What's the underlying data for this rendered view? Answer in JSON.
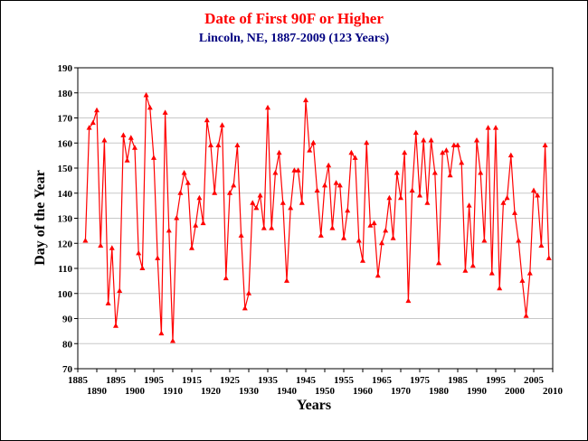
{
  "chart_data": {
    "type": "line",
    "title": "Date of First 90F or Higher",
    "subtitle": "Lincoln, NE, 1887-2009 (123 Years)",
    "xlabel": "Years",
    "ylabel": "Day of the Year",
    "xlim": [
      1885,
      2010
    ],
    "ylim": [
      70,
      190
    ],
    "y_ticks": [
      70,
      80,
      90,
      100,
      110,
      120,
      130,
      140,
      150,
      160,
      170,
      180,
      190
    ],
    "x_major_ticks": [
      1890,
      1900,
      1910,
      1920,
      1930,
      1940,
      1950,
      1960,
      1970,
      1980,
      1990,
      2000,
      2010
    ],
    "x_minor_ticks": [
      1885,
      1895,
      1905,
      1915,
      1925,
      1935,
      1945,
      1955,
      1965,
      1975,
      1985,
      1995,
      2005
    ],
    "grid": true,
    "legend": "none",
    "colors": {
      "title": "#ff0000",
      "subtitle": "#000080",
      "series": "#ff0000",
      "grid": "#c8c8c8"
    },
    "series": [
      {
        "x": [
          1887,
          1888,
          1889,
          1890,
          1891,
          1892,
          1893,
          1894,
          1895,
          1896,
          1897,
          1898,
          1899,
          1900,
          1901,
          1902,
          1903,
          1904,
          1905,
          1906,
          1907,
          1908,
          1909,
          1910,
          1911,
          1912,
          1913,
          1914,
          1915,
          1916,
          1917,
          1918,
          1919,
          1920,
          1921,
          1922,
          1923,
          1924,
          1925,
          1926,
          1927,
          1928,
          1929,
          1930,
          1931,
          1932,
          1933,
          1934,
          1935,
          1936,
          1937,
          1938,
          1939,
          1940,
          1941,
          1942,
          1943,
          1944,
          1945,
          1946,
          1947,
          1948,
          1949,
          1950,
          1951,
          1952,
          1953,
          1954,
          1955,
          1956,
          1957,
          1958,
          1959,
          1960,
          1961,
          1962,
          1963,
          1964,
          1965,
          1966,
          1967,
          1968,
          1969,
          1970,
          1971,
          1972,
          1973,
          1974,
          1975,
          1976,
          1977,
          1978,
          1979,
          1980,
          1981,
          1982,
          1983,
          1984,
          1985,
          1986,
          1987,
          1988,
          1989,
          1990,
          1991,
          1992,
          1993,
          1994,
          1995,
          1996,
          1997,
          1998,
          1999,
          2000,
          2001,
          2002,
          2003,
          2004,
          2005,
          2006,
          2007,
          2008,
          2009
        ],
        "values": [
          121,
          166,
          168,
          173,
          119,
          161,
          96,
          118,
          87,
          101,
          163,
          153,
          162,
          158,
          116,
          110,
          179,
          174,
          154,
          114,
          84,
          172,
          125,
          81,
          130,
          140,
          148,
          144,
          118,
          127,
          138,
          128,
          169,
          159,
          140,
          159,
          167,
          106,
          140,
          143,
          159,
          123,
          94,
          100,
          136,
          134,
          139,
          126,
          174,
          126,
          148,
          156,
          136,
          105,
          134,
          149,
          149,
          136,
          177,
          157,
          160,
          141,
          123,
          143,
          151,
          126,
          144,
          143,
          122,
          133,
          156,
          154,
          121,
          113,
          160,
          127,
          128,
          107,
          120,
          125,
          138,
          122,
          148,
          138,
          156,
          97,
          141,
          164,
          139,
          161,
          136,
          161,
          148,
          112,
          156,
          157,
          147,
          159,
          159,
          152,
          109,
          135,
          111,
          161,
          148,
          121,
          166,
          108,
          166,
          102,
          136,
          138,
          155,
          132,
          121,
          105,
          91,
          108,
          141,
          139,
          119,
          159,
          114
        ]
      }
    ]
  }
}
